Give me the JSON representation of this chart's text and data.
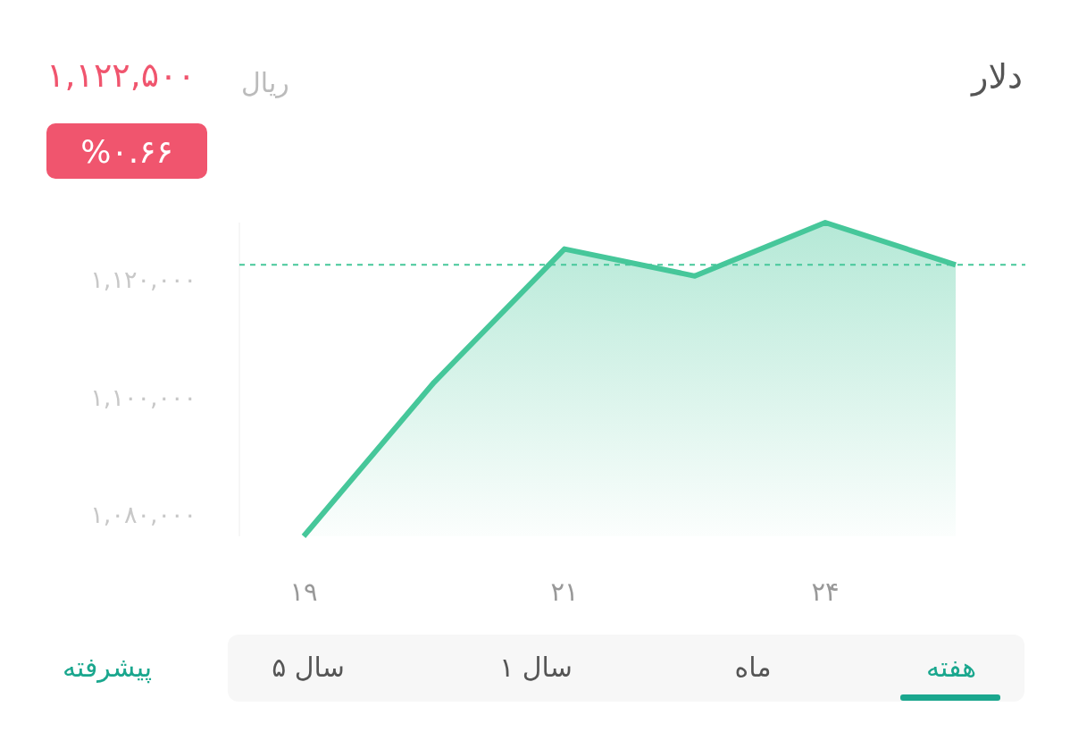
{
  "chart_data": {
    "type": "area",
    "title": "دلار",
    "subtitle": "۱,۱۲۲,۵۰۰",
    "categories": [
      "۱۹",
      null,
      "۲۱",
      null,
      "۲۴",
      null
    ],
    "series": [
      {
        "color": "#46c79a",
        "values": [
          1076300,
          1102500,
          1125200,
          1120600,
          1129700,
          1122500
        ]
      }
    ],
    "ylim": [
      1076300,
      1129700
    ],
    "yticks": [
      {
        "value": 1080000,
        "label": "۱,۰۸۰,۰۰۰"
      },
      {
        "value": 1100000,
        "label": "۱,۱۰۰,۰۰۰"
      },
      {
        "value": 1120000,
        "label": "۱,۱۲۰,۰۰۰"
      }
    ],
    "ref_lines": [
      {
        "axis": "y",
        "value": 1122500,
        "color": "#46c79a",
        "line_style": "dashed"
      }
    ],
    "annotations": [
      "ریال",
      "%۰.۶۶",
      "هفته",
      "ماه",
      "۱ سال",
      "۵ سال",
      "پیشرفته"
    ]
  }
}
